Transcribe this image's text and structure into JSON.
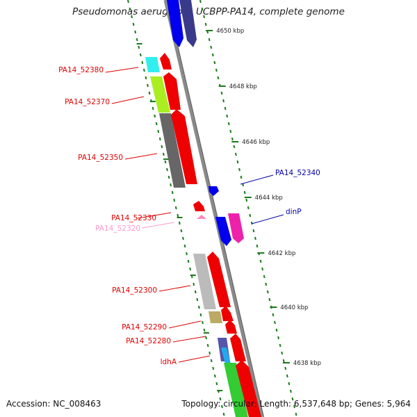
{
  "title": "Pseudomonas aeruginosa UCBPP-PA14, complete genome",
  "accession": "Accession: NC_008463",
  "summary": "Topology: circular; Length: 6,537,648 bp; Genes: 5,964",
  "colors": {
    "genome_line": "#8a8a8a",
    "tick": "#1a7a1a",
    "red_label": "#dd0000",
    "blue_label": "#0000aa",
    "pink_label": "#ff99cc",
    "gene_red": "#ee0000",
    "gene_blue": "#0000ee",
    "gene_navy": "#3a3a8a",
    "gene_magenta": "#ee22aa",
    "gene_pink": "#ff88bb",
    "cog_cyan": "#33eeee",
    "cog_lime": "#aaee22",
    "cog_darkgray": "#666666",
    "cog_lightgray": "#bbbbbb",
    "cog_khaki": "#bbaa66",
    "cog_green": "#33cc33"
  },
  "scale_ticks": [
    {
      "label": "4650 kbp"
    },
    {
      "label": "4648 kbp"
    },
    {
      "label": "4646 kbp"
    },
    {
      "label": "4644 kbp"
    },
    {
      "label": "4642 kbp"
    },
    {
      "label": "4640 kbp"
    },
    {
      "label": "4638 kbp"
    }
  ],
  "gene_labels": [
    {
      "text": "PA14_52380",
      "strand": "minus"
    },
    {
      "text": "PA14_52370",
      "strand": "minus"
    },
    {
      "text": "PA14_52350",
      "strand": "minus"
    },
    {
      "text": "PA14_52340",
      "strand": "plus"
    },
    {
      "text": "dinP",
      "strand": "plus"
    },
    {
      "text": "PA14_52330",
      "strand": "minus"
    },
    {
      "text": "PA14_52320",
      "strand": "minus"
    },
    {
      "text": "PA14_52300",
      "strand": "minus"
    },
    {
      "text": "PA14_52290",
      "strand": "minus"
    },
    {
      "text": "PA14_52280",
      "strand": "minus"
    },
    {
      "text": "ldhA",
      "strand": "minus"
    }
  ]
}
